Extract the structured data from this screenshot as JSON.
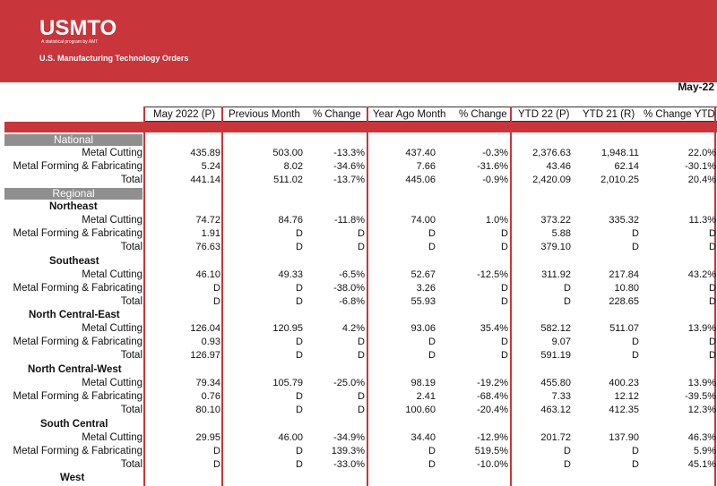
{
  "brand": {
    "logo": "USMTO",
    "tagline": "A statistical program by AMT",
    "title": "U.S. Manufacturing Technology Orders",
    "accent": "#c8353b"
  },
  "report_date": "May-22",
  "columns": [
    "May 2022 (P)",
    "Previous Month",
    "% Change",
    "Year Ago Month",
    "% Change",
    "YTD 22 (P)",
    "YTD 21 (R)",
    "% Change YTD"
  ],
  "sections": {
    "national": "National",
    "regional": "Regional"
  },
  "regions": {
    "northeast": "Northeast",
    "southeast": "Southeast",
    "nce": "North Central-East",
    "ncw": "North Central-West",
    "sc": "South Central",
    "west": "West"
  },
  "rows": [
    {
      "label": "Metal Cutting",
      "v": [
        "435.89",
        "503.00",
        "-13.3%",
        "437.40",
        "-0.3%",
        "2,376.63",
        "1,948.11",
        "22.0%"
      ]
    },
    {
      "label": "Metal Forming & Fabricating",
      "v": [
        "5.24",
        "8.02",
        "-34.6%",
        "7.66",
        "-31.6%",
        "43.46",
        "62.14",
        "-30.1%"
      ]
    },
    {
      "label": "Total",
      "v": [
        "441.14",
        "511.02",
        "-13.7%",
        "445.06",
        "-0.9%",
        "2,420.09",
        "2,010.25",
        "20.4%"
      ]
    },
    {
      "label": "Metal Cutting",
      "v": [
        "74.72",
        "84.76",
        "-11.8%",
        "74.00",
        "1.0%",
        "373.22",
        "335.32",
        "11.3%"
      ]
    },
    {
      "label": "Metal Forming & Fabricating",
      "v": [
        "1.91",
        "D",
        "D",
        "D",
        "D",
        "5.88",
        "D",
        "D"
      ]
    },
    {
      "label": "Total",
      "v": [
        "76.63",
        "D",
        "D",
        "D",
        "D",
        "379.10",
        "D",
        "D"
      ]
    },
    {
      "label": "Metal Cutting",
      "v": [
        "46.10",
        "49.33",
        "-6.5%",
        "52.67",
        "-12.5%",
        "311.92",
        "217.84",
        "43.2%"
      ]
    },
    {
      "label": "Metal Forming & Fabricating",
      "v": [
        "D",
        "D",
        "-38.0%",
        "3.26",
        "D",
        "D",
        "10.80",
        "D"
      ]
    },
    {
      "label": "Total",
      "v": [
        "D",
        "D",
        "-6.8%",
        "55.93",
        "D",
        "D",
        "228.65",
        "D"
      ]
    },
    {
      "label": "Metal Cutting",
      "v": [
        "126.04",
        "120.95",
        "4.2%",
        "93.06",
        "35.4%",
        "582.12",
        "511.07",
        "13.9%"
      ]
    },
    {
      "label": "Metal Forming & Fabricating",
      "v": [
        "0.93",
        "D",
        "D",
        "D",
        "D",
        "9.07",
        "D",
        "D"
      ]
    },
    {
      "label": "Total",
      "v": [
        "126.97",
        "D",
        "D",
        "D",
        "D",
        "591.19",
        "D",
        "D"
      ]
    },
    {
      "label": "Metal Cutting",
      "v": [
        "79.34",
        "105.79",
        "-25.0%",
        "98.19",
        "-19.2%",
        "455.80",
        "400.23",
        "13.9%"
      ]
    },
    {
      "label": "Metal Forming & Fabricating",
      "v": [
        "0.76",
        "D",
        "D",
        "2.41",
        "-68.4%",
        "7.33",
        "12.12",
        "-39.5%"
      ]
    },
    {
      "label": "Total",
      "v": [
        "80.10",
        "D",
        "D",
        "100.60",
        "-20.4%",
        "463.12",
        "412.35",
        "12.3%"
      ]
    },
    {
      "label": "Metal Cutting",
      "v": [
        "29.95",
        "46.00",
        "-34.9%",
        "34.40",
        "-12.9%",
        "201.72",
        "137.90",
        "46.3%"
      ]
    },
    {
      "label": "Metal Forming & Fabricating",
      "v": [
        "D",
        "D",
        "139.3%",
        "D",
        "519.5%",
        "D",
        "D",
        "5.9%"
      ]
    },
    {
      "label": "Total",
      "v": [
        "D",
        "D",
        "-33.0%",
        "D",
        "-10.0%",
        "D",
        "D",
        "45.1%"
      ]
    }
  ]
}
